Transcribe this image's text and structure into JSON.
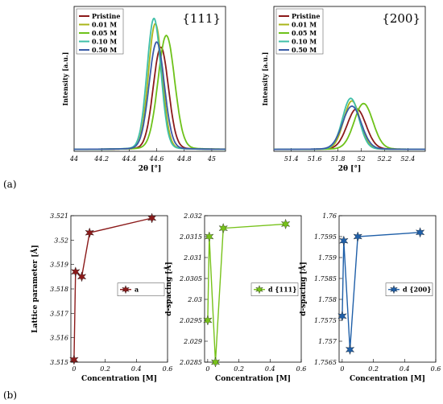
{
  "panel_labels": [
    "(a)",
    "(b)"
  ],
  "colors": {
    "pristine": "#8b1a1a",
    "c001": "#a9b51a",
    "c005": "#6ec21a",
    "c010": "#3fbfa8",
    "c050": "#3a5ca8",
    "a": "#8b1a1a",
    "d111": "#77c21a",
    "d200": "#1f5fa8"
  },
  "chart_data": [
    {
      "type": "line",
      "panel": "{111}",
      "title": "{111}",
      "xlabel": "2θ [°]",
      "ylabel": "Intensity [a.u.]",
      "xlim": [
        44.0,
        45.1
      ],
      "ylim": [
        0,
        1.15
      ],
      "xticks": [
        "44",
        "44.2",
        "44.4",
        "44.6",
        "44.8",
        "45"
      ],
      "grid": false,
      "legend_position": "top-left",
      "series": [
        {
          "name": "Pristine",
          "color_key": "pristine",
          "center": 44.63,
          "width": 0.055,
          "height": 0.78
        },
        {
          "name": "0.01 M",
          "color_key": "c001",
          "center": 44.59,
          "width": 0.05,
          "height": 0.96
        },
        {
          "name": "0.05 M",
          "color_key": "c005",
          "center": 44.67,
          "width": 0.06,
          "height": 0.87
        },
        {
          "name": "0.10 M",
          "color_key": "c010",
          "center": 44.58,
          "width": 0.05,
          "height": 1.0
        },
        {
          "name": "0.50 M",
          "color_key": "c050",
          "center": 44.6,
          "width": 0.055,
          "height": 0.82
        }
      ]
    },
    {
      "type": "line",
      "panel": "{200}",
      "title": "{200}",
      "xlabel": "2θ [°]",
      "ylabel": "Intensity [a.u.]",
      "xlim": [
        51.25,
        52.55
      ],
      "ylim": [
        0,
        1.15
      ],
      "xticks": [
        "51.4",
        "51.6",
        "51.8",
        "52",
        "52.2",
        "52.4"
      ],
      "grid": false,
      "legend_position": "top-left",
      "series": [
        {
          "name": "Pristine",
          "color_key": "pristine",
          "center": 51.96,
          "width": 0.08,
          "height": 0.31
        },
        {
          "name": "0.01 M",
          "color_key": "c001",
          "center": 51.92,
          "width": 0.07,
          "height": 0.37
        },
        {
          "name": "0.05 M",
          "color_key": "c005",
          "center": 52.02,
          "width": 0.08,
          "height": 0.35
        },
        {
          "name": "0.10 M",
          "color_key": "c010",
          "center": 51.91,
          "width": 0.07,
          "height": 0.39
        },
        {
          "name": "0.50 M",
          "color_key": "c050",
          "center": 51.92,
          "width": 0.08,
          "height": 0.33
        }
      ]
    },
    {
      "type": "line",
      "xlabel": "Concentration [M]",
      "ylabel": "Lattice parameter [Å]",
      "xlim": [
        -0.02,
        0.6
      ],
      "ylim": [
        3.515,
        3.521
      ],
      "xticks": [
        "0",
        "0.2",
        "0.4",
        "0.6"
      ],
      "yticks": [
        "3.515",
        "3.516",
        "3.517",
        "3.518",
        "3.519",
        "3.52",
        "3.521"
      ],
      "legend_position": "right",
      "series": [
        {
          "name": "a",
          "color_key": "a",
          "x": [
            0,
            0.01,
            0.05,
            0.1,
            0.5
          ],
          "y": [
            3.5151,
            3.5187,
            3.5185,
            3.5203,
            3.5209
          ]
        }
      ]
    },
    {
      "type": "line",
      "xlabel": "Concentration [M]",
      "ylabel": "d-spacing [Å]",
      "xlim": [
        -0.02,
        0.6
      ],
      "ylim": [
        2.0285,
        2.032
      ],
      "xticks": [
        "0",
        "0.2",
        "0.4",
        "0.6"
      ],
      "yticks": [
        "2.0285",
        "2.029",
        "2.0295",
        "2.03",
        "2.0305",
        "2.031",
        "2.0315",
        "2.032"
      ],
      "legend_position": "right",
      "series": [
        {
          "name": "d {111}",
          "color_key": "d111",
          "x": [
            0,
            0.01,
            0.05,
            0.1,
            0.5
          ],
          "y": [
            2.0295,
            2.0315,
            2.0285,
            2.0317,
            2.0318
          ]
        }
      ]
    },
    {
      "type": "line",
      "xlabel": "Concentration [M]",
      "ylabel": "d-spacing [Å]",
      "xlim": [
        -0.02,
        0.6
      ],
      "ylim": [
        1.7565,
        1.76
      ],
      "xticks": [
        "0",
        "0.2",
        "0.4",
        "0.6"
      ],
      "yticks": [
        "1.7565",
        "1.757",
        "1.7575",
        "1.758",
        "1.7585",
        "1.759",
        "1.7595",
        "1.76"
      ],
      "legend_position": "right",
      "series": [
        {
          "name": "d {200}",
          "color_key": "d200",
          "x": [
            0,
            0.01,
            0.05,
            0.1,
            0.5
          ],
          "y": [
            1.7576,
            1.7594,
            1.7568,
            1.7595,
            1.7596
          ]
        }
      ]
    }
  ]
}
